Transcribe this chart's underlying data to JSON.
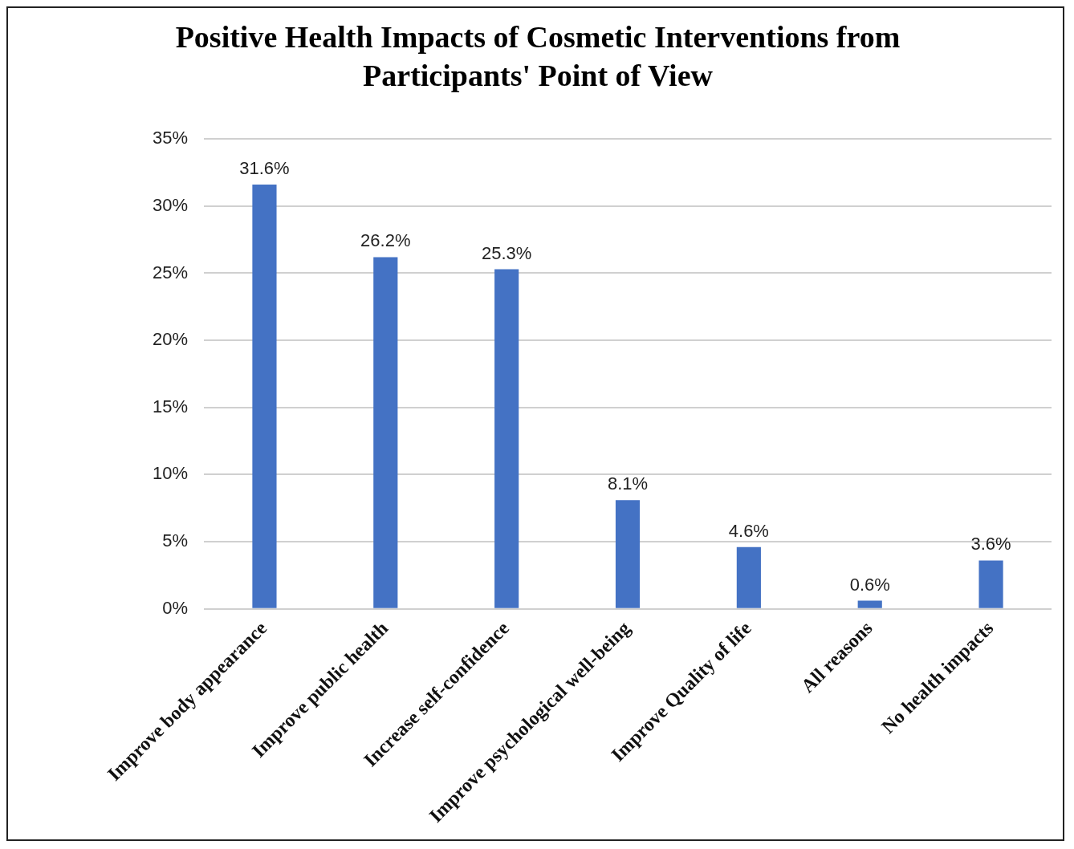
{
  "chart_data": {
    "type": "bar",
    "title": "Positive Health Impacts of Cosmetic Interventions from Participants' Point of View",
    "categories": [
      "Improve body appearance",
      "Improve public health",
      "Increase self-confidence",
      "Improve psychological well-being",
      "Improve Quality of life",
      "All reasons",
      "No health impacts"
    ],
    "values": [
      31.6,
      26.2,
      25.3,
      8.1,
      4.6,
      0.6,
      3.6
    ],
    "value_labels": [
      "31.6%",
      "26.2%",
      "25.3%",
      "8.1%",
      "4.6%",
      "0.6%",
      "3.6%"
    ],
    "color": "#4472c4",
    "ylim": [
      0,
      35
    ],
    "yticks": [
      {
        "value": 0,
        "label": "0%"
      },
      {
        "value": 5,
        "label": "5%"
      },
      {
        "value": 10,
        "label": "10%"
      },
      {
        "value": 15,
        "label": "15%"
      },
      {
        "value": 20,
        "label": "20%"
      },
      {
        "value": 25,
        "label": "25%"
      },
      {
        "value": 30,
        "label": "30%"
      },
      {
        "value": 35,
        "label": "35%"
      }
    ],
    "grid": "y",
    "legend": false
  }
}
